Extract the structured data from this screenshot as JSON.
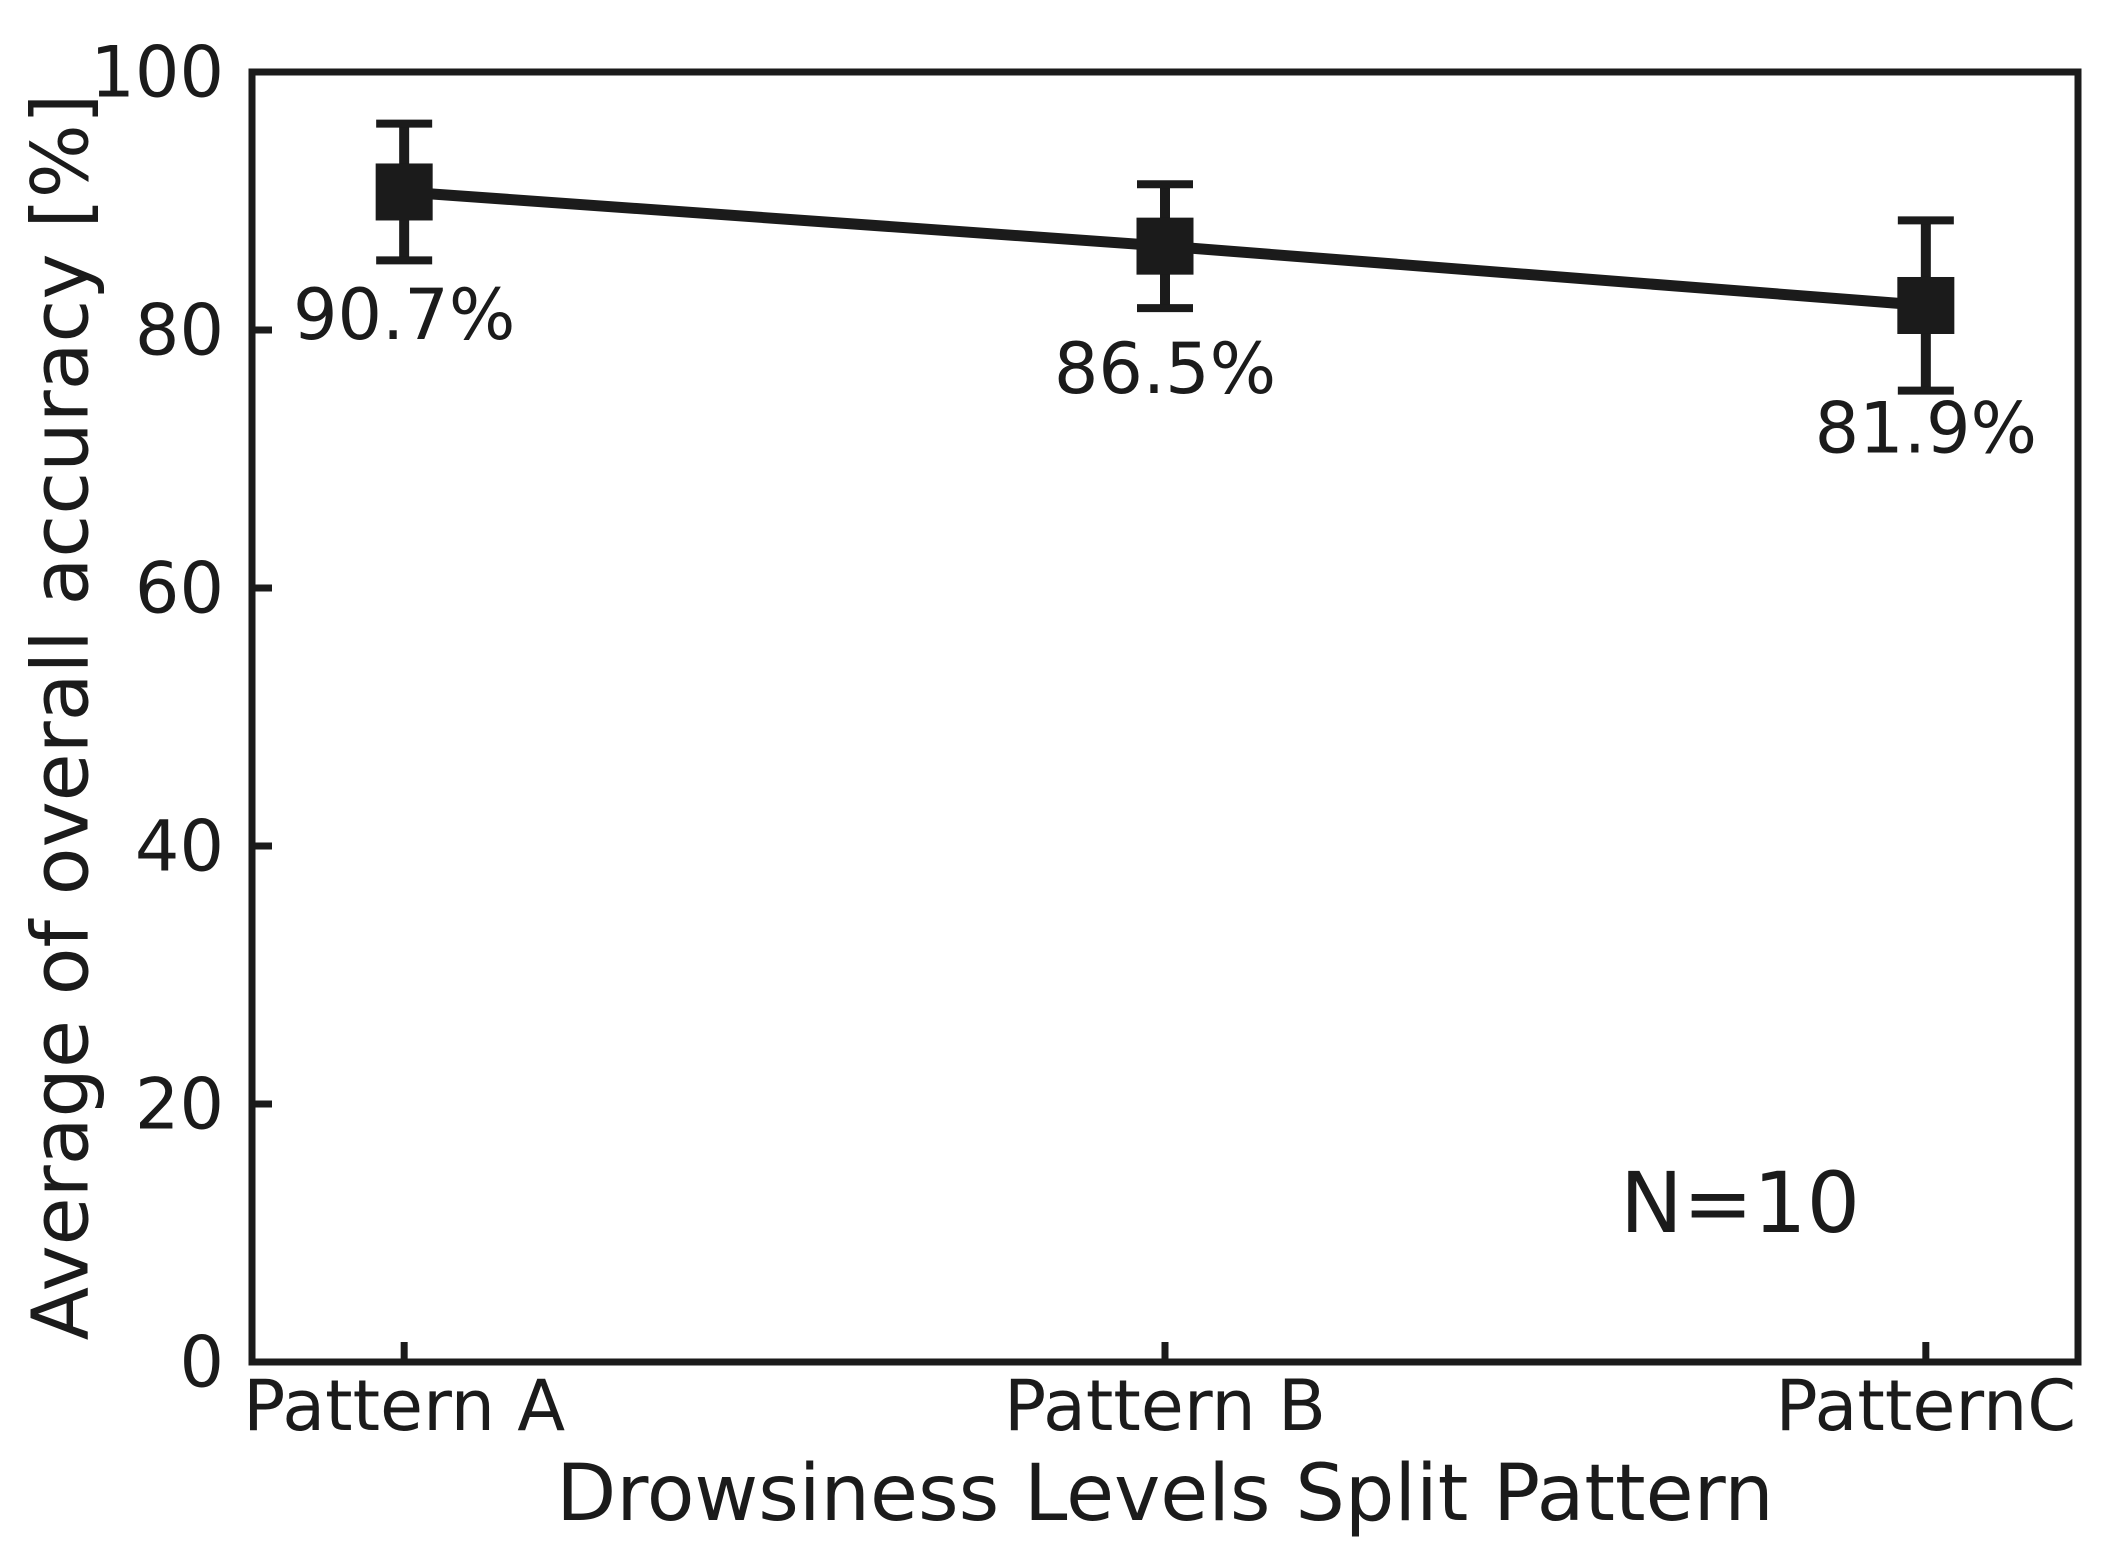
{
  "figure": {
    "background": "#ffffff",
    "ink_color": "#1b1b1b"
  },
  "chart_data": {
    "type": "line",
    "title": "",
    "categories": [
      "Pattern A",
      "Pattern B",
      "PatternC"
    ],
    "series": [
      {
        "name": "Average of overall accuracy",
        "values": [
          90.7,
          86.5,
          81.9
        ],
        "error_bars": [
          5.3,
          4.8,
          6.6
        ]
      }
    ],
    "point_labels": [
      "90.7%",
      "86.5%",
      "81.9%"
    ],
    "sample_size_label": "N=10",
    "xlabel": "Drowsiness Levels Split Pattern",
    "ylabel": "Average of overall accuracy [%]",
    "ylim": [
      0,
      100
    ],
    "yticks": [
      0,
      20,
      40,
      60,
      80,
      100
    ],
    "grid": false,
    "legend": "none",
    "marker": "filled-square",
    "line_style": "solid"
  }
}
